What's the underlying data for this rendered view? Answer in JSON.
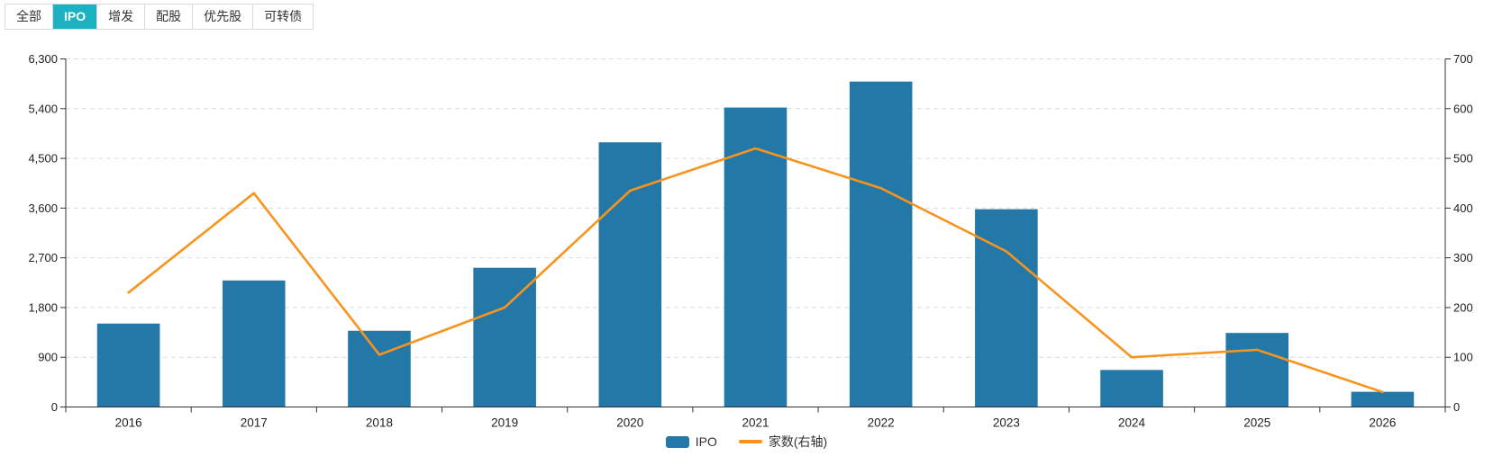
{
  "tabs": {
    "items": [
      {
        "label": "全部",
        "active": false
      },
      {
        "label": "IPO",
        "active": true
      },
      {
        "label": "增发",
        "active": false
      },
      {
        "label": "配股",
        "active": false
      },
      {
        "label": "优先股",
        "active": false
      },
      {
        "label": "可转债",
        "active": false
      }
    ]
  },
  "colors": {
    "bar": "#2378a8",
    "line": "#f7941e",
    "tab_active_bg": "#1bb3c2",
    "grid": "#dcdcdc",
    "axis": "#333333"
  },
  "legend": {
    "position": "bottom-center",
    "items": [
      {
        "label": "IPO",
        "swatch": "bar"
      },
      {
        "label": "家数(右轴)",
        "swatch": "line"
      }
    ]
  },
  "chart_data": {
    "type": "bar+line",
    "title": "",
    "categories": [
      "2016",
      "2017",
      "2018",
      "2019",
      "2020",
      "2021",
      "2022",
      "2023",
      "2024",
      "2025",
      "2026"
    ],
    "series": [
      {
        "name": "IPO",
        "type": "bar",
        "axis": "left",
        "color": "#2378a8",
        "values": [
          1510,
          2290,
          1380,
          2520,
          4790,
          5420,
          5890,
          3580,
          670,
          1340,
          275
        ]
      },
      {
        "name": "家数(右轴)",
        "type": "line",
        "axis": "right",
        "color": "#f7941e",
        "values": [
          230,
          430,
          105,
          200,
          435,
          520,
          440,
          313,
          100,
          115,
          30
        ]
      }
    ],
    "left_axis": {
      "min": 0,
      "max": 6300,
      "ticks": [
        0,
        900,
        1800,
        2700,
        3600,
        4500,
        5400,
        6300
      ],
      "tick_labels": [
        "0",
        "900",
        "1,800",
        "2,700",
        "3,600",
        "4,500",
        "5,400",
        "6,300"
      ]
    },
    "right_axis": {
      "min": 0,
      "max": 700,
      "ticks": [
        0,
        100,
        200,
        300,
        400,
        500,
        600,
        700
      ],
      "tick_labels": [
        "0",
        "100",
        "200",
        "300",
        "400",
        "500",
        "600",
        "700"
      ]
    },
    "grid": true,
    "grid_style": "dashed",
    "legend_position": "bottom"
  }
}
